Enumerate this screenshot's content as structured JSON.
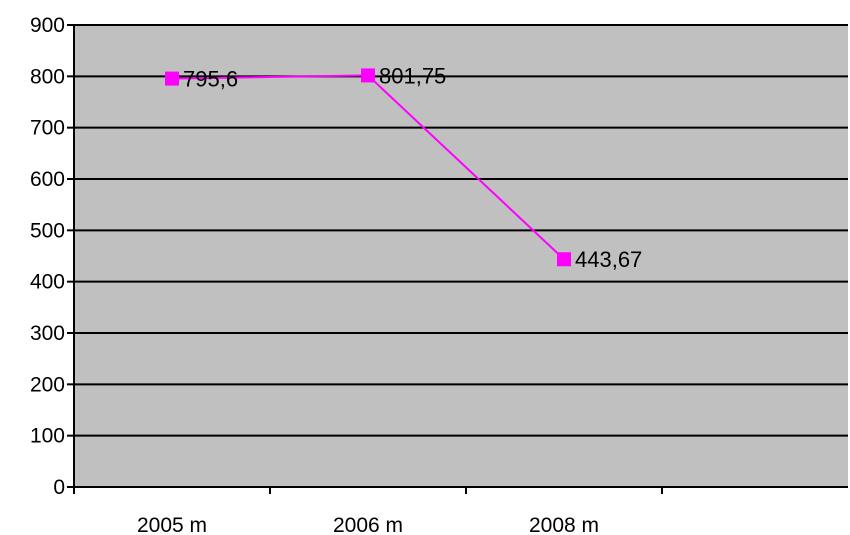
{
  "chart_data": {
    "type": "line",
    "title": "",
    "xlabel": "",
    "ylabel": "",
    "categories": [
      "2005 m",
      "2006 m",
      "2008 m"
    ],
    "series": [
      {
        "values": [
          795.6,
          801.75,
          443.67
        ],
        "data_labels": [
          "795,6",
          "801,75",
          "443,67"
        ]
      }
    ],
    "ylim": [
      0,
      900
    ],
    "y_ticks": [
      0,
      100,
      200,
      300,
      400,
      500,
      600,
      700,
      800,
      900
    ],
    "y_tick_labels": [
      "0",
      "100",
      "200",
      "300",
      "400",
      "500",
      "600",
      "700",
      "800",
      "900"
    ],
    "grid": true,
    "legend": "none",
    "colors": {
      "plot_background": "#c0c0c0",
      "gridline": "#000000",
      "series_line": "#ff00ff",
      "marker": "#ff00ff"
    }
  }
}
